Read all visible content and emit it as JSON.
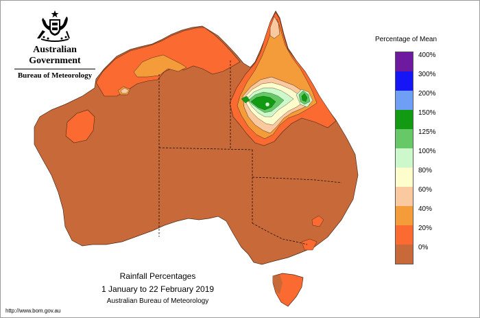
{
  "header": {
    "government": "Australian Government",
    "bureau": "Bureau of Meteorology"
  },
  "map": {
    "title": "Rainfall Percentages",
    "period": "1 January to 22 February 2019",
    "source": "Australian Bureau of Meteorology",
    "url": "http://www.bom.gov.au",
    "dominant_category": "0%-20%",
    "colors": {
      "0-20": "#c8693a",
      "20-40": "#fa6a31",
      "40-60": "#f59c3a",
      "60-80": "#fbc9a0",
      "80-100": "#fefdcc",
      "100-125": "#cdf8cc",
      "125-150": "#66c866",
      "150-200": "#139a13",
      "200-300": "#6e9ff5",
      "300-400": "#1515f5",
      "400+": "#6e1aa0"
    }
  },
  "legend": {
    "title": "Percentage of Mean",
    "colors": [
      "#6e1aa0",
      "#1515f5",
      "#6e9ff5",
      "#139a13",
      "#66c866",
      "#cdf8cc",
      "#fefdcc",
      "#fbc9a0",
      "#f59c3a",
      "#fa6a31",
      "#c8693a"
    ],
    "labels": [
      "400%",
      "300%",
      "200%",
      "150%",
      "125%",
      "100%",
      "80%",
      "60%",
      "40%",
      "20%",
      "0%"
    ]
  }
}
